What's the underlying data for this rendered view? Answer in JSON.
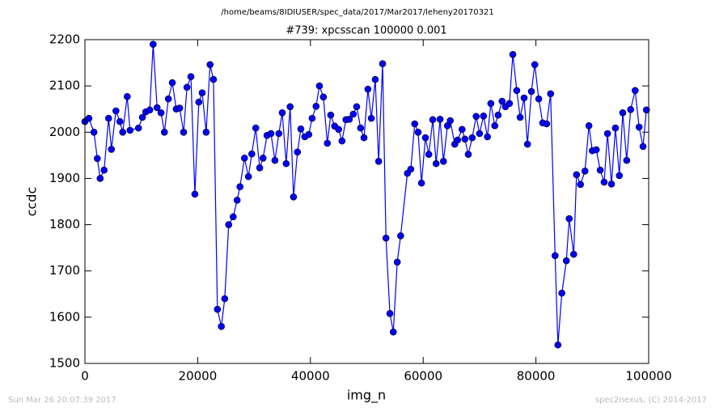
{
  "chart_data": {
    "type": "line",
    "suptitle": "/home/beams/8IDIUSER/spec_data/2017/Mar2017/leheny20170321",
    "title": "#739: xpcsscan 100000 0.001",
    "xlabel": "img_n",
    "ylabel": "ccdc",
    "footer_left": "Sun Mar 26 20:07:39 2017",
    "footer_right": "spec2nexus, (C) 2014-2017",
    "xlim": [
      0,
      100000
    ],
    "xticks": [
      0,
      20000,
      40000,
      60000,
      80000,
      100000
    ],
    "ylim": [
      1500,
      2200
    ],
    "yticks": [
      1500,
      1600,
      1700,
      1800,
      1900,
      2000,
      2100,
      2200
    ],
    "x": [
      0,
      700,
      1600,
      2200,
      2700,
      3400,
      4200,
      4700,
      5500,
      6200,
      6700,
      7500,
      8000,
      9500,
      10200,
      10800,
      11500,
      12100,
      12800,
      13500,
      14100,
      14800,
      15500,
      16200,
      16800,
      17500,
      18100,
      18800,
      19500,
      20200,
      20800,
      21500,
      22200,
      22800,
      23500,
      24200,
      24800,
      25500,
      26300,
      27000,
      27500,
      28300,
      29000,
      29600,
      30300,
      31000,
      31600,
      32300,
      33000,
      33700,
      34400,
      35000,
      35700,
      36400,
      37000,
      37700,
      38300,
      39000,
      39700,
      40300,
      41000,
      41600,
      42300,
      43000,
      43600,
      44300,
      45000,
      45600,
      46300,
      46900,
      47600,
      48200,
      48900,
      49500,
      50200,
      50800,
      51500,
      52100,
      52800,
      53400,
      54100,
      54700,
      55400,
      56000,
      57200,
      57800,
      58500,
      59100,
      59700,
      60400,
      61000,
      61700,
      62300,
      63000,
      63600,
      64300,
      64800,
      65600,
      66100,
      66900,
      67400,
      68000,
      68700,
      69400,
      70000,
      70700,
      71400,
      72000,
      72700,
      73300,
      74000,
      74600,
      75300,
      75900,
      76600,
      77200,
      77900,
      78500,
      79200,
      79800,
      80500,
      81200,
      81900,
      82600,
      83400,
      83900,
      84600,
      85400,
      85900,
      86700,
      87200,
      87900,
      88700,
      89400,
      90000,
      90700,
      91400,
      92100,
      92700,
      93400,
      94100,
      94800,
      95400,
      96100,
      96800,
      97600,
      98300,
      99000,
      99600
    ],
    "series": [
      {
        "name": "ccdc",
        "color": "#0000ff",
        "values": [
          2023,
          2030,
          2000,
          1943,
          1900,
          1918,
          2030,
          1963,
          2046,
          2023,
          2000,
          2077,
          2004,
          2009,
          2032,
          2044,
          2048,
          2190,
          2053,
          2042,
          2000,
          2072,
          2107,
          2050,
          2052,
          2000,
          2097,
          2120,
          1866,
          2065,
          2085,
          2000,
          2146,
          2114,
          1617,
          1580,
          1640,
          1800,
          1817,
          1853,
          1882,
          1944,
          1904,
          1953,
          2009,
          1923,
          1944,
          1993,
          1997,
          1939,
          1997,
          2042,
          1932,
          2055,
          1860,
          1957,
          2007,
          1990,
          1995,
          2030,
          2056,
          2100,
          2076,
          1976,
          2037,
          2013,
          2006,
          1981,
          2027,
          2028,
          2039,
          2055,
          2009,
          1988,
          2093,
          2030,
          2114,
          1937,
          2148,
          1771,
          1608,
          1568,
          1719,
          1776,
          1911,
          1920,
          2018,
          2000,
          1890,
          1988,
          1952,
          2027,
          1932,
          2028,
          1937,
          2014,
          2025,
          1974,
          1983,
          2006,
          1985,
          1952,
          1988,
          2034,
          1997,
          2035,
          1990,
          2062,
          2014,
          2037,
          2067,
          2055,
          2062,
          2168,
          2090,
          2032,
          2074,
          1974,
          2088,
          2146,
          2072,
          2020,
          2018,
          2083,
          1733,
          1540,
          1652,
          1722,
          1813,
          1736,
          1908,
          1887,
          1916,
          2014,
          1960,
          1962,
          1918,
          1892,
          1997,
          1888,
          2009,
          1906,
          2042,
          1939,
          2049,
          2090,
          2011,
          1969,
          2048
        ]
      }
    ]
  }
}
